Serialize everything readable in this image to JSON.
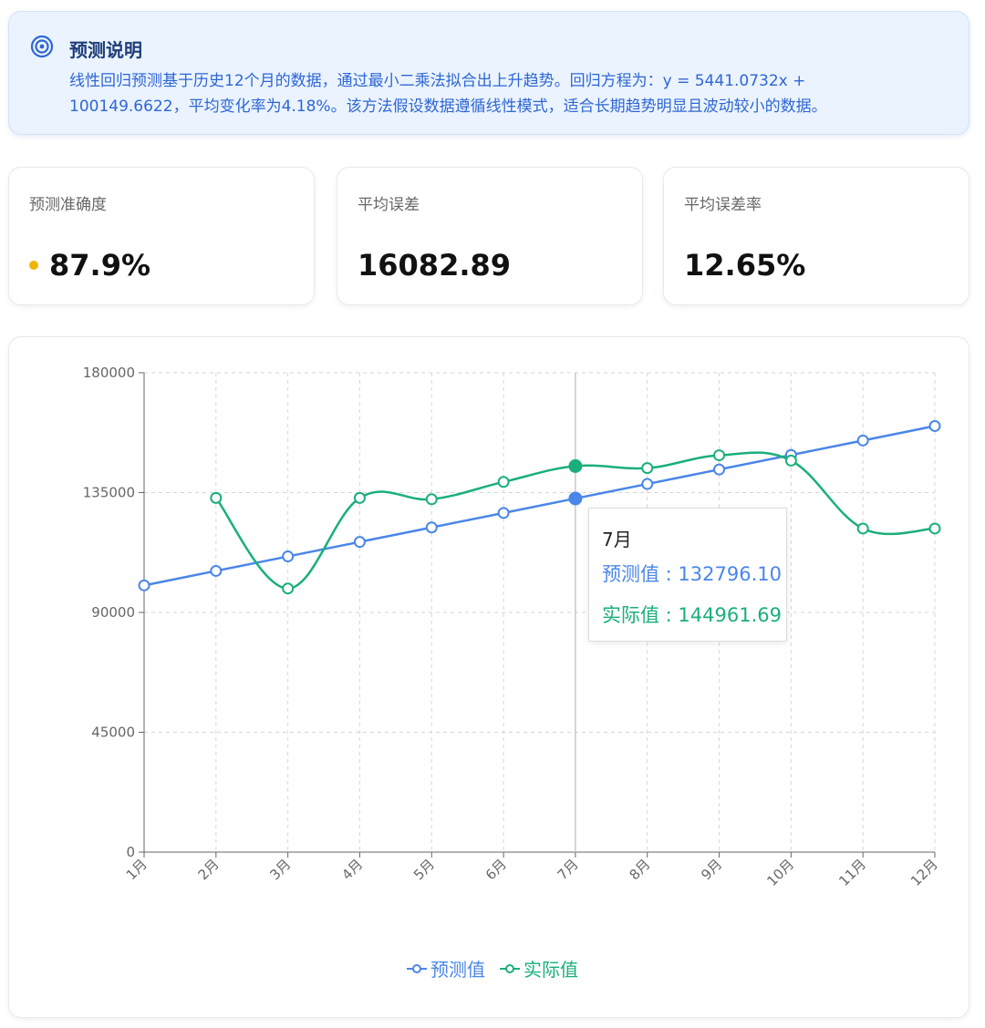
{
  "info": {
    "title": "预测说明",
    "text": "线性回归预测基于历史12个月的数据，通过最小二乘法拟合出上升趋势。回归方程为：y = 5441.0732x + 100149.6622，平均变化率为4.18%。该方法假设数据遵循线性模式，适合长期趋势明显且波动较小的数据。",
    "icon": "target-icon"
  },
  "metrics": [
    {
      "label": "预测准确度",
      "value": "87.9%"
    },
    {
      "label": "平均误差",
      "value": "16082.89"
    },
    {
      "label": "平均误差率",
      "value": "12.65%"
    }
  ],
  "colors": {
    "predicted": "#4a86e8",
    "actual": "#1aaf7a",
    "accent_dot": "#f0b400"
  },
  "chart_data": {
    "type": "line",
    "categories": [
      "1月",
      "2月",
      "3月",
      "4月",
      "5月",
      "6月",
      "7月",
      "8月",
      "9月",
      "10月",
      "11月",
      "12月"
    ],
    "yticks": [
      "0",
      "45000",
      "90000",
      "135000",
      "180000"
    ],
    "ylim": [
      0,
      180000
    ],
    "grid": true,
    "legend_position": "bottom",
    "series": [
      {
        "name": "预测值",
        "values": [
          100149.66,
          105590.74,
          111031.81,
          116472.88,
          121913.96,
          127355.03,
          132796.1,
          138237.18,
          143678.25,
          149119.32,
          154560.4,
          160001.47
        ]
      },
      {
        "name": "实际值",
        "values": [
          null,
          133000,
          99000,
          133000,
          132500,
          139000,
          144961.69,
          144200,
          149000,
          147000,
          121500,
          121500
        ]
      }
    ]
  },
  "tooltip": {
    "title": "7月",
    "predicted_label": "预测值 : 132796.10",
    "actual_label": "实际值 : 144961.69"
  }
}
